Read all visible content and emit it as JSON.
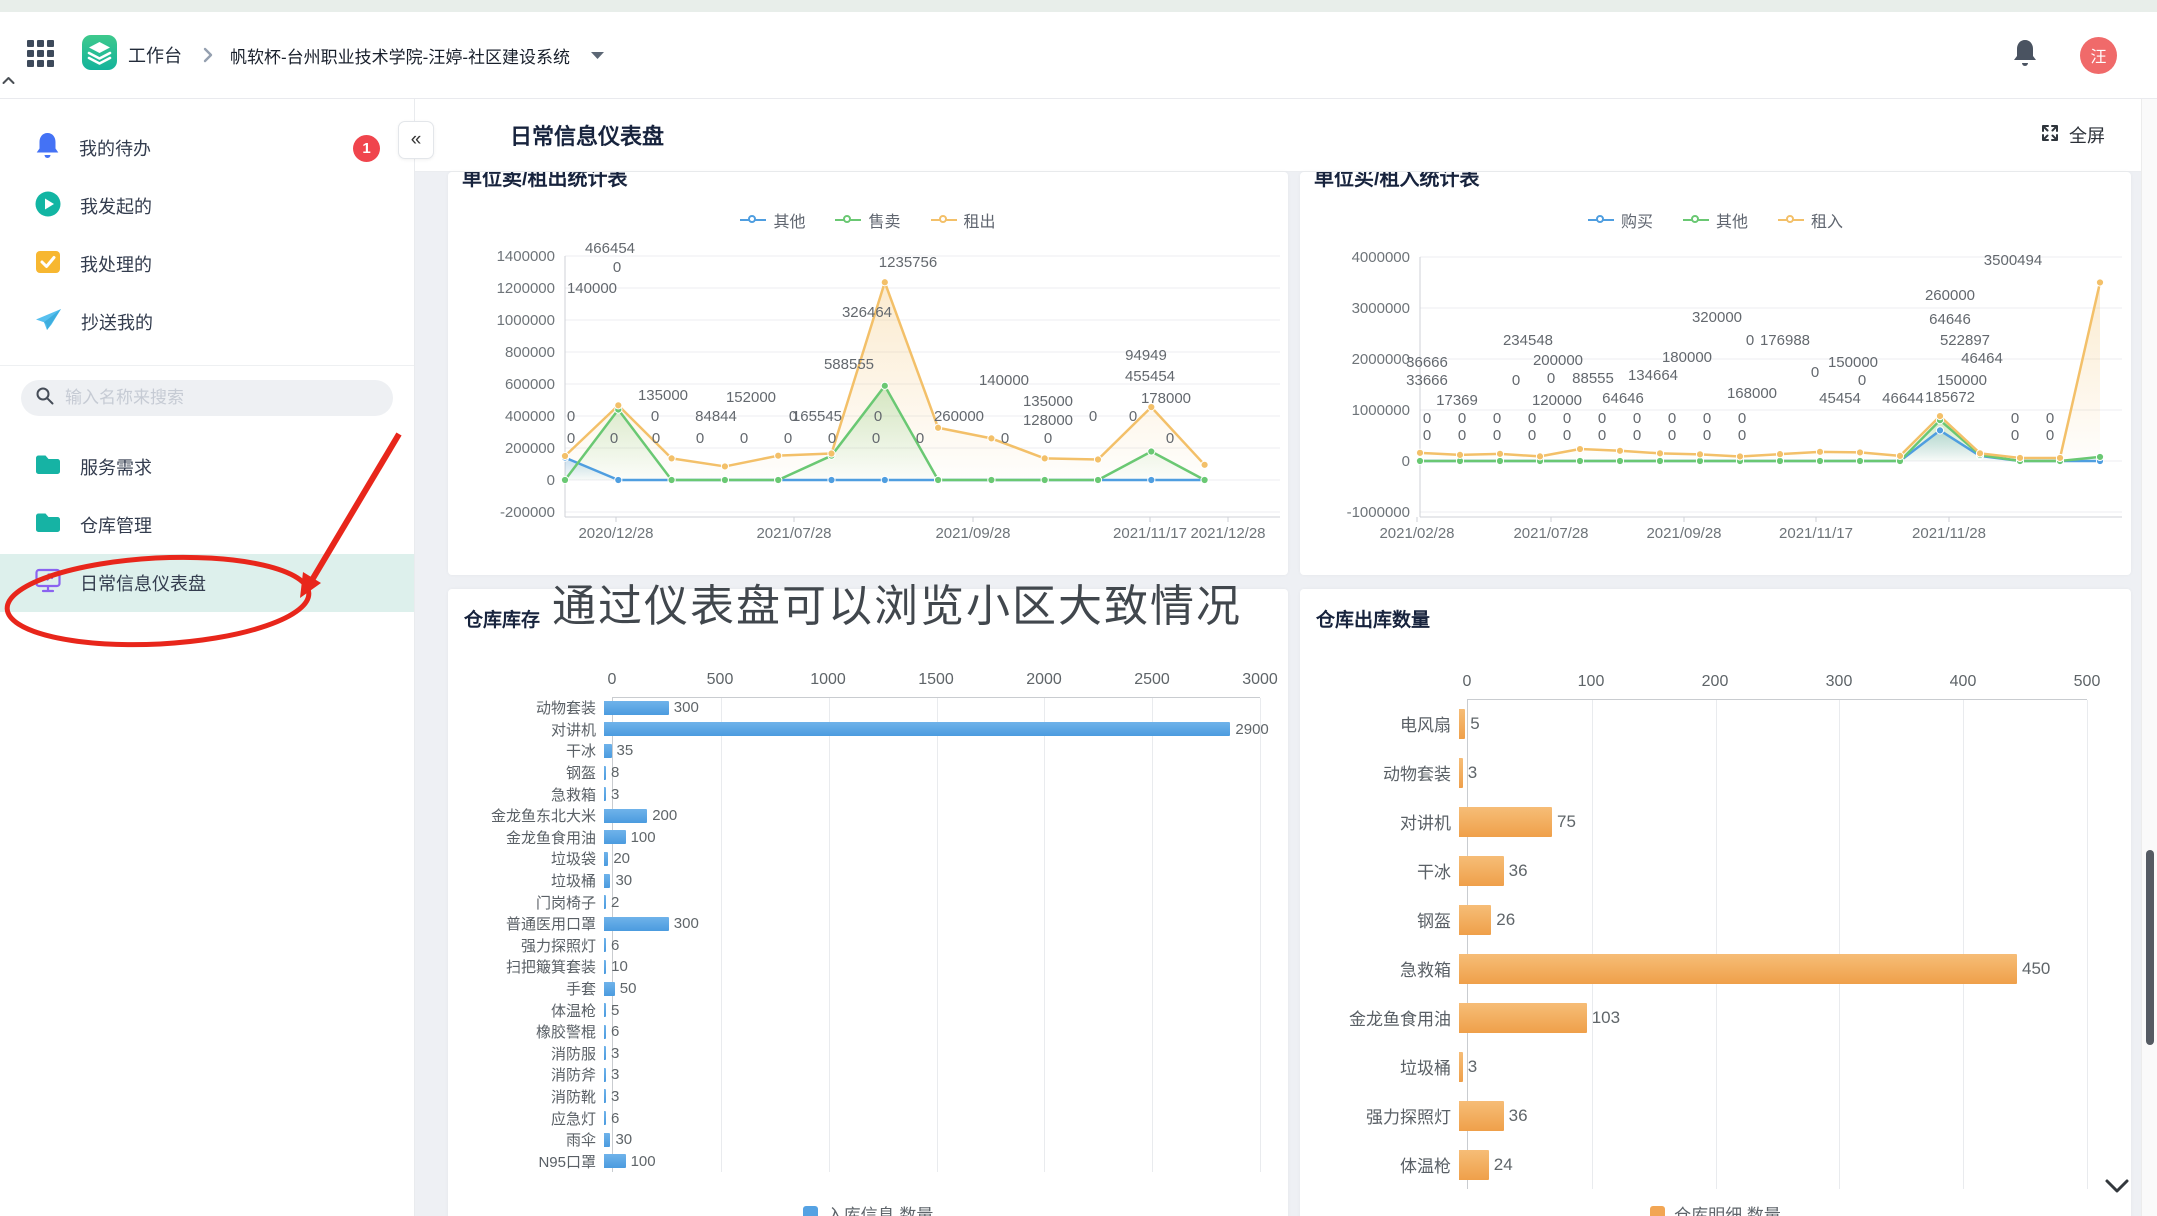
{
  "topbar": {
    "workspace": "工作台",
    "breadcrumb_title": "帆软杯-台州职业技术学院-汪婷-社区建设系统",
    "avatar_text": "汪"
  },
  "sidebar": {
    "search_placeholder": "输入名称来搜索",
    "items": [
      {
        "label": "我的待办",
        "badge": "1"
      },
      {
        "label": "我发起的"
      },
      {
        "label": "我处理的"
      },
      {
        "label": "抄送我的"
      }
    ],
    "menu": [
      {
        "label": "服务需求"
      },
      {
        "label": "仓库管理"
      },
      {
        "label": "日常信息仪表盘",
        "active": true
      }
    ]
  },
  "header": {
    "collapse_icon": "«",
    "title": "日常信息仪表盘",
    "fullscreen_label": "全屏"
  },
  "caption": "通过仪表盘可以浏览小区大致情况",
  "colors": {
    "annotation_red": "#e8261b",
    "badge_red": "#f0454d",
    "avatar_pink": "#f06a6a",
    "active_item_bg": "#ddf0ec",
    "blue_series": "#4f9ee0",
    "green_series": "#6ac873",
    "orange_series": "#f3c069",
    "blue_bar": "#55a2e3",
    "orange_bar": "#f2a654"
  },
  "chart_data": [
    {
      "type": "line",
      "title": "单位卖/租出统计表",
      "legend_position": "top",
      "x_tick_labels": [
        "2020/12/28",
        "2021/07/28",
        "2021/09/28",
        "2021/11/17",
        "2021/12/28"
      ],
      "y_ticks": [
        1400000,
        1200000,
        1000000,
        800000,
        600000,
        400000,
        200000,
        0,
        -200000
      ],
      "series": [
        {
          "name": "其他",
          "color": "#4f9ee0",
          "values": [
            140000,
            0,
            0,
            0,
            0,
            0,
            0,
            0,
            0,
            0,
            0,
            0,
            0
          ]
        },
        {
          "name": "售卖",
          "color": "#6ac873",
          "values": [
            0,
            440000,
            0,
            0,
            0,
            152000,
            588555,
            0,
            0,
            0,
            0,
            178000,
            0
          ]
        },
        {
          "name": "租出",
          "color": "#f3c069",
          "values": [
            150000,
            466454,
            135000,
            84844,
            152000,
            165545,
            1235756,
            326464,
            260000,
            135000,
            128000,
            455454,
            94949
          ]
        }
      ],
      "point_labels": [
        {
          "t": "466454",
          "x": 162,
          "y": 81
        },
        {
          "t": "0",
          "x": 169,
          "y": 100
        },
        {
          "t": "140000",
          "x": 144,
          "y": 121
        },
        {
          "t": "135000",
          "x": 215,
          "y": 228
        },
        {
          "t": "152000",
          "x": 303,
          "y": 230
        },
        {
          "t": "84844",
          "x": 268,
          "y": 249
        },
        {
          "t": "165545",
          "x": 369,
          "y": 249
        },
        {
          "t": "588555",
          "x": 401,
          "y": 197
        },
        {
          "t": "326464",
          "x": 419,
          "y": 145
        },
        {
          "t": "1235756",
          "x": 460,
          "y": 95
        },
        {
          "t": "140000",
          "x": 556,
          "y": 213
        },
        {
          "t": "135000",
          "x": 600,
          "y": 234
        },
        {
          "t": "260000",
          "x": 511,
          "y": 249
        },
        {
          "t": "128000",
          "x": 600,
          "y": 253
        },
        {
          "t": "94949",
          "x": 698,
          "y": 188
        },
        {
          "t": "455454",
          "x": 702,
          "y": 209
        },
        {
          "t": "178000",
          "x": 718,
          "y": 231
        }
      ],
      "zero_rows": [
        {
          "y": 249,
          "xs": [
            123,
            207,
            345,
            430,
            645,
            685
          ]
        },
        {
          "y": 271,
          "xs": [
            123,
            166,
            208,
            252,
            296,
            340,
            384,
            428,
            472,
            557,
            600,
            722
          ]
        }
      ]
    },
    {
      "type": "line",
      "title": "单位买/租入统计表",
      "legend_position": "top",
      "x_tick_labels": [
        "2021/02/28",
        "2021/07/28",
        "2021/09/28",
        "2021/11/17",
        "2021/11/28"
      ],
      "y_ticks": [
        4000000,
        3000000,
        2000000,
        1000000,
        0,
        -1000000
      ],
      "series": [
        {
          "name": "购买",
          "color": "#4f9ee0",
          "values": [
            0,
            0,
            0,
            0,
            0,
            0,
            0,
            0,
            0,
            0,
            0,
            0,
            0,
            600000,
            100000,
            0,
            0,
            0
          ]
        },
        {
          "name": "其他",
          "color": "#6ac873",
          "values": [
            0,
            0,
            0,
            0,
            0,
            0,
            0,
            0,
            0,
            0,
            0,
            0,
            0,
            800000,
            120000,
            0,
            0,
            80000
          ]
        },
        {
          "name": "租入",
          "color": "#f3c069",
          "values": [
            160000,
            120000,
            140000,
            90000,
            234548,
            200000,
            150000,
            130000,
            88555,
            134664,
            180000,
            168000,
            100000,
            880000,
            150000,
            60000,
            60000,
            3500494
          ]
        }
      ],
      "point_labels": [
        {
          "t": "36666",
          "x": 127,
          "y": 195
        },
        {
          "t": "33666",
          "x": 127,
          "y": 213
        },
        {
          "t": "17369",
          "x": 157,
          "y": 233
        },
        {
          "t": "234548",
          "x": 228,
          "y": 173
        },
        {
          "t": "200000",
          "x": 258,
          "y": 193
        },
        {
          "t": "0",
          "x": 216,
          "y": 213
        },
        {
          "t": "0",
          "x": 251,
          "y": 211
        },
        {
          "t": "120000",
          "x": 257,
          "y": 233
        },
        {
          "t": "88555",
          "x": 293,
          "y": 211
        },
        {
          "t": "64646",
          "x": 323,
          "y": 231
        },
        {
          "t": "134664",
          "x": 353,
          "y": 208
        },
        {
          "t": "180000",
          "x": 387,
          "y": 190
        },
        {
          "t": "320000",
          "x": 417,
          "y": 150
        },
        {
          "t": "0",
          "x": 450,
          "y": 173
        },
        {
          "t": "168000",
          "x": 452,
          "y": 226
        },
        {
          "t": "176988",
          "x": 485,
          "y": 173
        },
        {
          "t": "0",
          "x": 515,
          "y": 205
        },
        {
          "t": "150000",
          "x": 553,
          "y": 195
        },
        {
          "t": "0",
          "x": 562,
          "y": 213
        },
        {
          "t": "45454",
          "x": 540,
          "y": 231
        },
        {
          "t": "46644",
          "x": 603,
          "y": 231
        },
        {
          "t": "185672",
          "x": 650,
          "y": 230
        },
        {
          "t": "150000",
          "x": 662,
          "y": 213
        },
        {
          "t": "46464",
          "x": 682,
          "y": 191
        },
        {
          "t": "522897",
          "x": 665,
          "y": 173
        },
        {
          "t": "64646",
          "x": 650,
          "y": 152
        },
        {
          "t": "260000",
          "x": 650,
          "y": 128
        },
        {
          "t": "3500494",
          "x": 713,
          "y": 93
        }
      ],
      "zero_rows": [
        {
          "y": 251,
          "xs": [
            127,
            162,
            197,
            232,
            267,
            302,
            337,
            372,
            407,
            442,
            715,
            750
          ]
        },
        {
          "y": 268,
          "xs": [
            127,
            162,
            197,
            232,
            267,
            302,
            337,
            372,
            407,
            442,
            715,
            750
          ]
        }
      ]
    },
    {
      "type": "bar",
      "title": "仓库库存",
      "legend_label": "入库信息.数量",
      "x_ticks": [
        0,
        500,
        1000,
        1500,
        2000,
        2500,
        3000
      ],
      "max": 3000,
      "categories": [
        "动物套装",
        "对讲机",
        "干冰",
        "钢盔",
        "急救箱",
        "金龙鱼东北大米",
        "金龙鱼食用油",
        "垃圾袋",
        "垃圾桶",
        "门岗椅子",
        "普通医用口罩",
        "强力探照灯",
        "扫把簸箕套装",
        "手套",
        "体温枪",
        "橡胶警棍",
        "消防服",
        "消防斧",
        "消防靴",
        "应急灯",
        "雨伞",
        "N95口罩"
      ],
      "values": [
        300,
        2900,
        35,
        8,
        3,
        200,
        100,
        20,
        30,
        2,
        300,
        6,
        10,
        50,
        5,
        6,
        3,
        3,
        3,
        6,
        30,
        100
      ]
    },
    {
      "type": "bar",
      "title": "仓库出库数量",
      "legend_label": "仓库明细.数量",
      "x_ticks": [
        0,
        100,
        200,
        300,
        400,
        500
      ],
      "max": 500,
      "categories": [
        "电风扇",
        "动物套装",
        "对讲机",
        "干冰",
        "钢盔",
        "急救箱",
        "金龙鱼食用油",
        "垃圾桶",
        "强力探照灯",
        "体温枪"
      ],
      "values": [
        5,
        3,
        75,
        36,
        26,
        450,
        103,
        3,
        36,
        24
      ]
    }
  ]
}
